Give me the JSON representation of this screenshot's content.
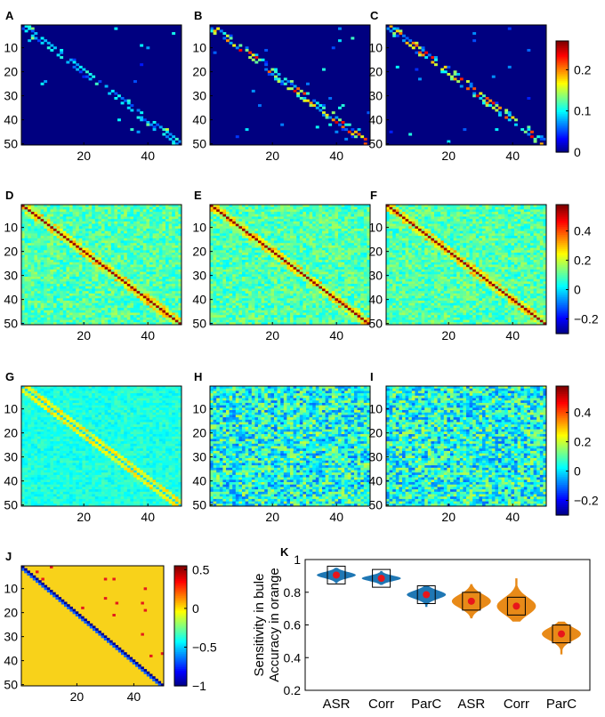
{
  "chart_data": [
    {
      "type": "heatmap",
      "panel": "A",
      "xticks": [
        "20",
        "40"
      ],
      "yticks": [
        "10",
        "20",
        "30",
        "40",
        "50"
      ],
      "n": 50,
      "pattern": "sparse",
      "seed": 1,
      "scale": "1"
    },
    {
      "type": "heatmap",
      "panel": "B",
      "xticks": [
        "20",
        "40"
      ],
      "yticks": [
        "10",
        "20",
        "30",
        "40",
        "50"
      ],
      "n": 50,
      "pattern": "sparse",
      "seed": 2,
      "scale": "1"
    },
    {
      "type": "heatmap",
      "panel": "C",
      "xticks": [
        "20",
        "40"
      ],
      "yticks": [
        "10",
        "20",
        "30",
        "40",
        "50"
      ],
      "n": 50,
      "pattern": "sparse",
      "seed": 3,
      "scale": "1"
    },
    {
      "type": "heatmap",
      "panel": "D",
      "xticks": [
        "20",
        "40"
      ],
      "yticks": [
        "10",
        "20",
        "30",
        "40",
        "50"
      ],
      "n": 50,
      "pattern": "dense",
      "seed": 4,
      "scale": "2"
    },
    {
      "type": "heatmap",
      "panel": "E",
      "xticks": [
        "20",
        "40"
      ],
      "yticks": [
        "10",
        "20",
        "30",
        "40",
        "50"
      ],
      "n": 50,
      "pattern": "dense",
      "seed": 5,
      "scale": "2"
    },
    {
      "type": "heatmap",
      "panel": "F",
      "xticks": [
        "20",
        "40"
      ],
      "yticks": [
        "10",
        "20",
        "30",
        "40",
        "50"
      ],
      "n": 50,
      "pattern": "dense",
      "seed": 6,
      "scale": "2"
    },
    {
      "type": "heatmap",
      "panel": "G",
      "xticks": [
        "20",
        "40"
      ],
      "yticks": [
        "10",
        "20",
        "30",
        "40",
        "50"
      ],
      "n": 50,
      "pattern": "noisy",
      "seed": 7,
      "scale": "3"
    },
    {
      "type": "heatmap",
      "panel": "H",
      "xticks": [
        "20",
        "40"
      ],
      "yticks": [
        "10",
        "20",
        "30",
        "40",
        "50"
      ],
      "n": 50,
      "pattern": "noisy",
      "seed": 8,
      "scale": "3"
    },
    {
      "type": "heatmap",
      "panel": "I",
      "xticks": [
        "20",
        "40"
      ],
      "yticks": [
        "10",
        "20",
        "30",
        "40",
        "50"
      ],
      "n": 50,
      "pattern": "noisy",
      "seed": 9,
      "scale": "3"
    },
    {
      "type": "heatmap",
      "panel": "J",
      "xticks": [
        "20",
        "40"
      ],
      "yticks": [
        "10",
        "20",
        "30",
        "40",
        "50"
      ],
      "n": 50,
      "pattern": "binary",
      "seed": 10,
      "scale": "4"
    },
    {
      "type": "violin",
      "panel": "K",
      "categories": [
        "ASR",
        "Corr",
        "ParC",
        "ASR",
        "Corr",
        "ParC"
      ],
      "series": [
        {
          "name": "Sensitivity",
          "color": "#1f77b4",
          "indices": [
            0,
            1,
            2
          ]
        },
        {
          "name": "Accuracy",
          "color": "#e88a18",
          "indices": [
            3,
            4,
            5
          ]
        }
      ],
      "means": [
        0.905,
        0.885,
        0.785,
        0.745,
        0.715,
        0.545
      ],
      "mins": [
        0.855,
        0.845,
        0.71,
        0.64,
        0.62,
        0.42
      ],
      "maxs": [
        0.95,
        0.93,
        0.84,
        0.85,
        0.885,
        0.62
      ],
      "ylabel_line1": "Sensitivity in bule",
      "ylabel_line2": "Accuracy in orange",
      "yticks": [
        "0.2",
        "0.4",
        "0.6",
        "0.8",
        "1"
      ],
      "ylim": [
        0.2,
        1.0
      ]
    }
  ],
  "colorbars": [
    {
      "id": "1",
      "ticks": [
        "0.2",
        "0.1",
        "0"
      ],
      "tick_values": [
        0.2,
        0.1,
        0.0
      ],
      "range": [
        0,
        0.27
      ]
    },
    {
      "id": "2",
      "ticks": [
        "0.4",
        "0.2",
        "0",
        "−0.2"
      ],
      "tick_values": [
        0.4,
        0.2,
        0.0,
        -0.2
      ],
      "range": [
        -0.3,
        0.58
      ]
    },
    {
      "id": "3",
      "ticks": [
        "0.4",
        "0.2",
        "0",
        "−0.2"
      ],
      "tick_values": [
        0.4,
        0.2,
        0.0,
        -0.2
      ],
      "range": [
        -0.3,
        0.58
      ]
    },
    {
      "id": "4",
      "ticks": [
        "0.5",
        "0",
        "−0.5",
        "−1"
      ],
      "tick_values": [
        0.5,
        0.0,
        -0.5,
        -1.0
      ],
      "range": [
        -1.0,
        0.55
      ]
    }
  ],
  "colors": {
    "marker": "#e8151b",
    "box": "#000000",
    "yellow": "#f8d21a",
    "navy": "#00008f"
  }
}
